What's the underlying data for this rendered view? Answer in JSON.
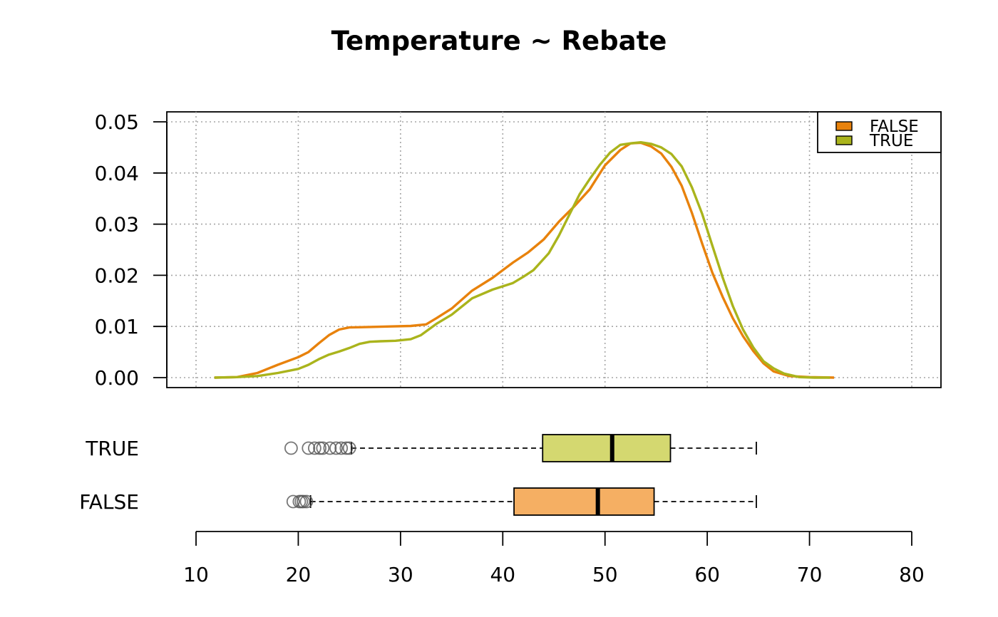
{
  "chart_data": {
    "type": "density_boxplot",
    "title": "Temperature ~ Rebate",
    "xlabel": "",
    "ylabel": "",
    "xlim": [
      10,
      80
    ],
    "ylim": [
      0,
      0.05
    ],
    "x_ticks": [
      10,
      20,
      30,
      40,
      50,
      60,
      70,
      80
    ],
    "x_tick_labels": [
      "10",
      "20",
      "30",
      "40",
      "50",
      "60",
      "70",
      "80"
    ],
    "y_ticks": [
      0,
      0.01,
      0.02,
      0.03,
      0.04,
      0.05
    ],
    "y_tick_labels": [
      "0.00",
      "0.01",
      "0.02",
      "0.03",
      "0.04",
      "0.05"
    ],
    "grid": true,
    "legend_position": "top-right",
    "legend": [
      {
        "label": "FALSE",
        "color": "#E8820C"
      },
      {
        "label": "TRUE",
        "color": "#AAB41C"
      }
    ],
    "density_series": [
      {
        "name": "FALSE",
        "color": "#E8820C",
        "x": [
          11.8,
          14,
          16,
          18,
          20,
          21,
          22,
          23,
          24,
          25,
          27,
          29,
          31,
          32.5,
          33.5,
          35,
          37,
          39,
          41,
          42.5,
          44,
          45.5,
          47,
          48.5,
          50,
          51.5,
          52.5,
          53.5,
          54.5,
          55.5,
          56.5,
          57.5,
          58.5,
          59.5,
          60.5,
          61.5,
          62.5,
          63.5,
          64.5,
          65.5,
          66.5,
          68,
          70,
          72.4
        ],
        "y": [
          0,
          0.0001,
          0.0009,
          0.0025,
          0.004,
          0.005,
          0.0067,
          0.0083,
          0.0094,
          0.0098,
          0.0099,
          0.01,
          0.0101,
          0.0104,
          0.0116,
          0.0135,
          0.017,
          0.0195,
          0.0225,
          0.0245,
          0.027,
          0.0305,
          0.0335,
          0.0368,
          0.0415,
          0.0445,
          0.0458,
          0.0459,
          0.0452,
          0.0438,
          0.0412,
          0.0375,
          0.0322,
          0.0262,
          0.0205,
          0.0158,
          0.0116,
          0.0081,
          0.0052,
          0.0028,
          0.0012,
          0.0003,
          0.0001,
          0
        ]
      },
      {
        "name": "TRUE",
        "color": "#AAB41C",
        "x": [
          11.8,
          14,
          16,
          18,
          20,
          21,
          22,
          23,
          24,
          25,
          26,
          27,
          28,
          29.5,
          31,
          32,
          33.5,
          35,
          37,
          39,
          41,
          42,
          43,
          44.5,
          45.5,
          46.5,
          47.5,
          48.5,
          49.5,
          50.5,
          51.5,
          52.5,
          53.5,
          54.5,
          55.5,
          56.5,
          57.5,
          58.5,
          59.5,
          60.5,
          61.5,
          62.5,
          63.5,
          64.5,
          65.5,
          66.5,
          67.5,
          69,
          70.5,
          72
        ],
        "y": [
          0,
          0.0001,
          0.0003,
          0.0009,
          0.0017,
          0.0025,
          0.0036,
          0.0045,
          0.0051,
          0.0058,
          0.0066,
          0.007,
          0.0071,
          0.0072,
          0.0075,
          0.0083,
          0.0105,
          0.0123,
          0.0155,
          0.0172,
          0.0185,
          0.0197,
          0.021,
          0.0243,
          0.0278,
          0.0318,
          0.0358,
          0.0388,
          0.0416,
          0.044,
          0.0455,
          0.0458,
          0.046,
          0.0457,
          0.045,
          0.0437,
          0.0413,
          0.0372,
          0.032,
          0.0258,
          0.0196,
          0.014,
          0.0094,
          0.0059,
          0.0032,
          0.0018,
          0.0008,
          0.0001,
          0,
          0
        ]
      }
    ],
    "boxplots": [
      {
        "name": "TRUE",
        "label": "TRUE",
        "fill": "#D4D870",
        "whisker_low": 25.2,
        "q1": 43.9,
        "median": 50.7,
        "q3": 56.4,
        "whisker_high": 64.8,
        "outliers": [
          19.3,
          21,
          21.6,
          22.1,
          22.4,
          23.1,
          23.7,
          24.2,
          24.7,
          25
        ]
      },
      {
        "name": "FALSE",
        "label": "FALSE",
        "fill": "#F5AF63",
        "whisker_low": 21.2,
        "q1": 41.1,
        "median": 49.3,
        "q3": 54.8,
        "whisker_high": 64.8,
        "outliers": [
          19.5,
          20.1,
          20.3,
          20.5,
          20.8
        ]
      }
    ]
  }
}
